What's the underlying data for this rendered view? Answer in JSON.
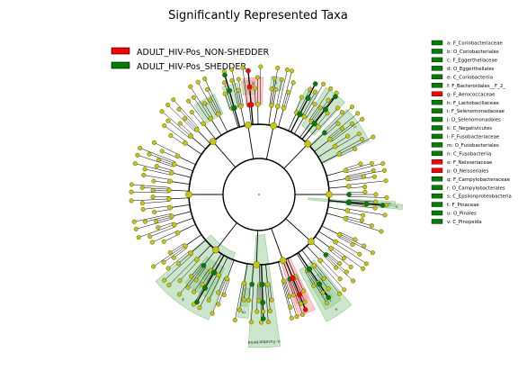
{
  "title": "Significantly Represented Taxa",
  "colors": {
    "non_shedder": "#ff0000",
    "shedder": "#008000",
    "node": "#c8c800",
    "edge": "#000000",
    "non_shedder_shade": "#ff8c8c",
    "shedder_shade": "#8cc98c"
  },
  "legend": [
    {
      "label": "ADULT_HIV-Pos_NON-SHEDDER",
      "color": "#ff0000"
    },
    {
      "label": "ADULT_HIV-Pos_SHEDDER",
      "color": "#008000"
    }
  ],
  "taxa_key": [
    {
      "text": "a: F_Coriobacteriaceae",
      "color": "#008000"
    },
    {
      "text": "b: O_Coriobacteriales",
      "color": "#008000"
    },
    {
      "text": "c: F_Eggerthellaceae",
      "color": "#008000"
    },
    {
      "text": "d: O_Eggerthellales",
      "color": "#008000"
    },
    {
      "text": "e: C_Coriobacteriia",
      "color": "#008000"
    },
    {
      "text": "f: F_Bacteroidales__F_2_",
      "color": "#008000"
    },
    {
      "text": "g: F_Aerococcaceae",
      "color": "#ff0000"
    },
    {
      "text": "h: F_Lactobacillaceae",
      "color": "#008000"
    },
    {
      "text": "i: F_Selenomonadaceae",
      "color": "#008000"
    },
    {
      "text": "j: O_Selenomonadales",
      "color": "#008000"
    },
    {
      "text": "k: C_Negativicutes",
      "color": "#008000"
    },
    {
      "text": "l: F_Fusobacteriaceae",
      "color": "#008000"
    },
    {
      "text": "m: O_Fusobacteriales",
      "color": "#008000"
    },
    {
      "text": "n: C_Fusobacteriia",
      "color": "#008000"
    },
    {
      "text": "o: F_Neisseriaceae",
      "color": "#ff0000"
    },
    {
      "text": "p: O_Neisseriales",
      "color": "#ff0000"
    },
    {
      "text": "q: F_Campylobacteraceae",
      "color": "#008000"
    },
    {
      "text": "r: O_Campylobacterales",
      "color": "#008000"
    },
    {
      "text": "s: C_Epsilonproteobacteria",
      "color": "#008000"
    },
    {
      "text": "t: F_Pinaceae",
      "color": "#008000"
    },
    {
      "text": "u: O_Pinales",
      "color": "#008000"
    },
    {
      "text": "v: C_Pinopsida",
      "color": "#008000"
    }
  ],
  "sectors": [
    {
      "label": "e",
      "group": "shedder"
    },
    {
      "label": "d",
      "group": "shedder"
    },
    {
      "label": "c",
      "group": "shedder"
    },
    {
      "label": "b",
      "group": "shedder"
    },
    {
      "label": "a",
      "group": "shedder"
    },
    {
      "label": "f",
      "group": "shedder"
    },
    {
      "label": "v",
      "group": "shedder"
    },
    {
      "label": "u",
      "group": "shedder"
    },
    {
      "label": "t",
      "group": "shedder"
    },
    {
      "label": "s",
      "group": "shedder"
    },
    {
      "label": "r",
      "group": "shedder"
    },
    {
      "label": "q",
      "group": "shedder"
    },
    {
      "label": "p",
      "group": "non_shedder"
    },
    {
      "label": "o",
      "group": "non_shedder"
    },
    {
      "label": "n: Fusobacteriia",
      "group": "shedder"
    },
    {
      "label": "m",
      "group": "shedder"
    },
    {
      "label": "l",
      "group": "shedder"
    },
    {
      "label": "k",
      "group": "shedder"
    },
    {
      "label": "j",
      "group": "shedder"
    },
    {
      "label": "i",
      "group": "shedder"
    },
    {
      "label": "h",
      "group": "shedder"
    },
    {
      "label": "g",
      "group": "non_shedder"
    }
  ]
}
